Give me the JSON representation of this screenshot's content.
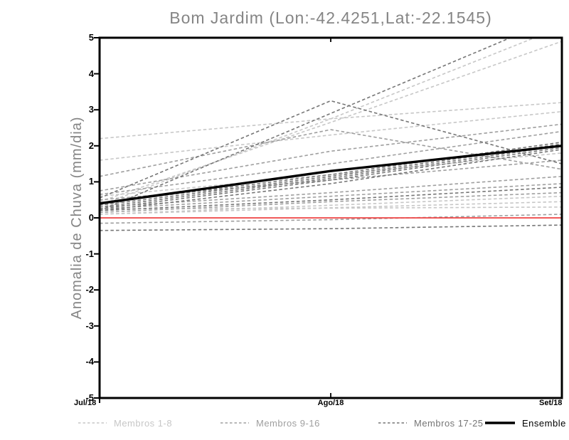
{
  "title": "Bom Jardim (Lon:-42.4251,Lat:-22.1545)",
  "axes": {
    "ylabel": "Anomalia de Chuva (mm/dia)",
    "ylim": [
      -5,
      5
    ],
    "yticks": [
      "5",
      "4",
      "3",
      "2",
      "1",
      "0",
      "-1",
      "-2",
      "-3",
      "-4",
      "-5"
    ],
    "xticks": [
      "Jul/18",
      "Ago/18",
      "Set/18"
    ]
  },
  "colors": {
    "frame": "#000000",
    "title_text": "#858585",
    "members_1_8": "#c7c7c7",
    "members_9_16": "#9f9f9f",
    "members_17_25": "#767676",
    "ensemble_mean": "#000000",
    "zero_line": "#ee4343"
  },
  "legend": {
    "items": [
      {
        "label": "Membros 1-8",
        "color": "#c7c7c7",
        "style": "dashed"
      },
      {
        "label": "Membros 9-16",
        "color": "#9f9f9f",
        "style": "dashed"
      },
      {
        "label": "Membros 17-25",
        "color": "#767676",
        "style": "dashed"
      },
      {
        "label": "Ensemble Mean",
        "color": "#000000",
        "style": "thick-solid"
      }
    ]
  },
  "chart_data": {
    "type": "line",
    "title": "Bom Jardim (Lon:-42.4251,Lat:-22.1545)",
    "xlabel": "",
    "ylabel": "Anomalia de Chuva (mm/dia)",
    "x": [
      "Jul/18",
      "Ago/18",
      "Set/18"
    ],
    "ylim": [
      -5,
      5
    ],
    "grid": false,
    "legend_position": "bottom",
    "series": [
      {
        "name": "Membros 1-8",
        "color": "#c7c7c7",
        "dashed": true,
        "members": [
          [
            2.2,
            2.75,
            3.2
          ],
          [
            1.6,
            2.3,
            2.95
          ],
          [
            0.35,
            2.75,
            5.3
          ],
          [
            0.6,
            1.2,
            1.8
          ],
          [
            0.25,
            0.27,
            0.3
          ],
          [
            0.1,
            0.35,
            0.6
          ],
          [
            0.1,
            0.28,
            0.45
          ],
          [
            0.45,
            2.65,
            4.9
          ]
        ]
      },
      {
        "name": "Membros 9-16",
        "color": "#9f9f9f",
        "dashed": true,
        "members": [
          [
            1.15,
            2.45,
            1.35
          ],
          [
            0.75,
            1.85,
            2.6
          ],
          [
            0.65,
            1.5,
            2.4
          ],
          [
            0.5,
            1.05,
            1.6
          ],
          [
            0.3,
            0.7,
            1.15
          ],
          [
            0.25,
            0.6,
            0.95
          ],
          [
            0.15,
            0.45,
            0.7
          ],
          [
            -0.15,
            -0.05,
            0.1
          ]
        ]
      },
      {
        "name": "Membros 17-25",
        "color": "#767676",
        "dashed": true,
        "members": [
          [
            0.55,
            3.25,
            1.5
          ],
          [
            0.2,
            2.9,
            5.6
          ],
          [
            0.4,
            1.2,
            2.1
          ],
          [
            0.35,
            1.15,
            2.05
          ],
          [
            0.3,
            1.1,
            2.0
          ],
          [
            0.25,
            1.05,
            1.95
          ],
          [
            0.2,
            0.95,
            1.9
          ],
          [
            0.2,
            0.5,
            0.85
          ],
          [
            -0.35,
            -0.3,
            -0.2
          ]
        ]
      },
      {
        "name": "Zero line",
        "color": "#ee4343",
        "dashed": false,
        "width": 1.8,
        "values": [
          0,
          0,
          0
        ]
      },
      {
        "name": "Ensemble Mean",
        "color": "#000000",
        "dashed": false,
        "width": 3.4,
        "values": [
          0.4,
          1.3,
          2.0
        ]
      }
    ]
  }
}
